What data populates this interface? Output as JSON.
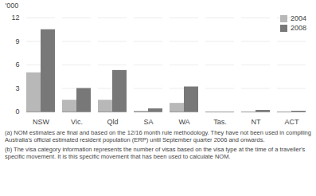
{
  "chart_data": {
    "type": "bar",
    "ylabel": "'000",
    "categories": [
      "NSW",
      "Vic.",
      "Qld",
      "SA",
      "WA",
      "Tas.",
      "NT",
      "ACT"
    ],
    "series": [
      {
        "name": "2004",
        "color": "#b8b8b8",
        "values": [
          5.0,
          1.5,
          1.5,
          0.1,
          1.1,
          0.0,
          0.0,
          0.0
        ]
      },
      {
        "name": "2008",
        "color": "#787878",
        "values": [
          10.5,
          3.0,
          5.3,
          0.4,
          3.2,
          0.0,
          0.2,
          0.1
        ]
      }
    ],
    "ylim": [
      0,
      12
    ],
    "yticks": [
      0,
      3,
      6,
      9,
      12
    ],
    "grid": true,
    "legend": "upper right",
    "annotations": [
      "(a)  NOM estimates are final and based on the 12/16 month rule methodology. They have not been used in compiling Australia's official estimated resident population (ERP) until September quarter 2006 and onwards.",
      "(b)  The visa category information represents the number of visas based on the visa type at the time of a traveller's specific movement. It is this specific movement that has been used to calculate NOM."
    ]
  }
}
